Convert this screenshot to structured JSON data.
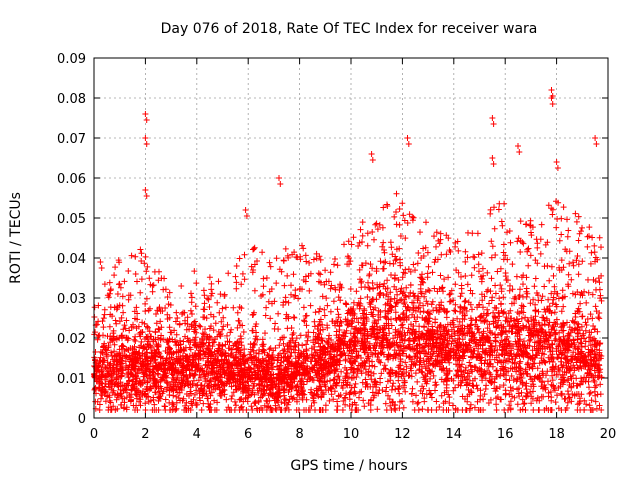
{
  "chart_data": {
    "type": "scatter",
    "title": "Day 076 of 2018, Rate Of TEC Index for receiver wara",
    "xlabel": "GPS time / hours",
    "ylabel": "ROTI / TECUs",
    "xlim": [
      0,
      20
    ],
    "ylim": [
      0,
      0.09
    ],
    "xticks": [
      0,
      2,
      4,
      6,
      8,
      10,
      12,
      14,
      16,
      18,
      20
    ],
    "xtick_labels": [
      "0",
      "2",
      "4",
      "6",
      "8",
      "10",
      "12",
      "14",
      "16",
      "18",
      "20"
    ],
    "yticks": [
      0,
      0.01,
      0.02,
      0.03,
      0.04,
      0.05,
      0.06,
      0.07,
      0.08,
      0.09
    ],
    "ytick_labels": [
      "0",
      "0.01",
      "0.02",
      "0.03",
      "0.04",
      "0.05",
      "0.06",
      "0.07",
      "0.08",
      "0.09"
    ],
    "grid": true,
    "marker": "+",
    "color": "#ff0000",
    "series": [
      {
        "name": "ROTI",
        "x_range": [
          0,
          19.75
        ],
        "envelope": {
          "description": "approximate upper extent of dense points (hours, ROTI)",
          "x": [
            0,
            1,
            2,
            3,
            4,
            5,
            6,
            7,
            8,
            9,
            10,
            11,
            12,
            13,
            14,
            15,
            16,
            17,
            18,
            19,
            19.7
          ],
          "upper": [
            0.03,
            0.04,
            0.043,
            0.035,
            0.038,
            0.035,
            0.045,
            0.04,
            0.045,
            0.04,
            0.045,
            0.055,
            0.057,
            0.05,
            0.045,
            0.05,
            0.055,
            0.05,
            0.055,
            0.05,
            0.045
          ],
          "center": [
            0.01,
            0.011,
            0.012,
            0.011,
            0.012,
            0.011,
            0.01,
            0.009,
            0.011,
            0.012,
            0.016,
            0.018,
            0.018,
            0.017,
            0.015,
            0.015,
            0.016,
            0.015,
            0.015,
            0.014,
            0.012
          ]
        },
        "notable_points": [
          {
            "x": 0.25,
            "y": 0.039
          },
          {
            "x": 2.0,
            "y": 0.076
          },
          {
            "x": 2.0,
            "y": 0.07
          },
          {
            "x": 2.0,
            "y": 0.057
          },
          {
            "x": 5.9,
            "y": 0.052
          },
          {
            "x": 7.2,
            "y": 0.06
          },
          {
            "x": 10.8,
            "y": 0.066
          },
          {
            "x": 12.2,
            "y": 0.07
          },
          {
            "x": 15.5,
            "y": 0.075
          },
          {
            "x": 15.5,
            "y": 0.065
          },
          {
            "x": 16.5,
            "y": 0.068
          },
          {
            "x": 17.8,
            "y": 0.082
          },
          {
            "x": 17.8,
            "y": 0.08
          },
          {
            "x": 18.0,
            "y": 0.064
          },
          {
            "x": 19.5,
            "y": 0.07
          }
        ]
      }
    ]
  }
}
